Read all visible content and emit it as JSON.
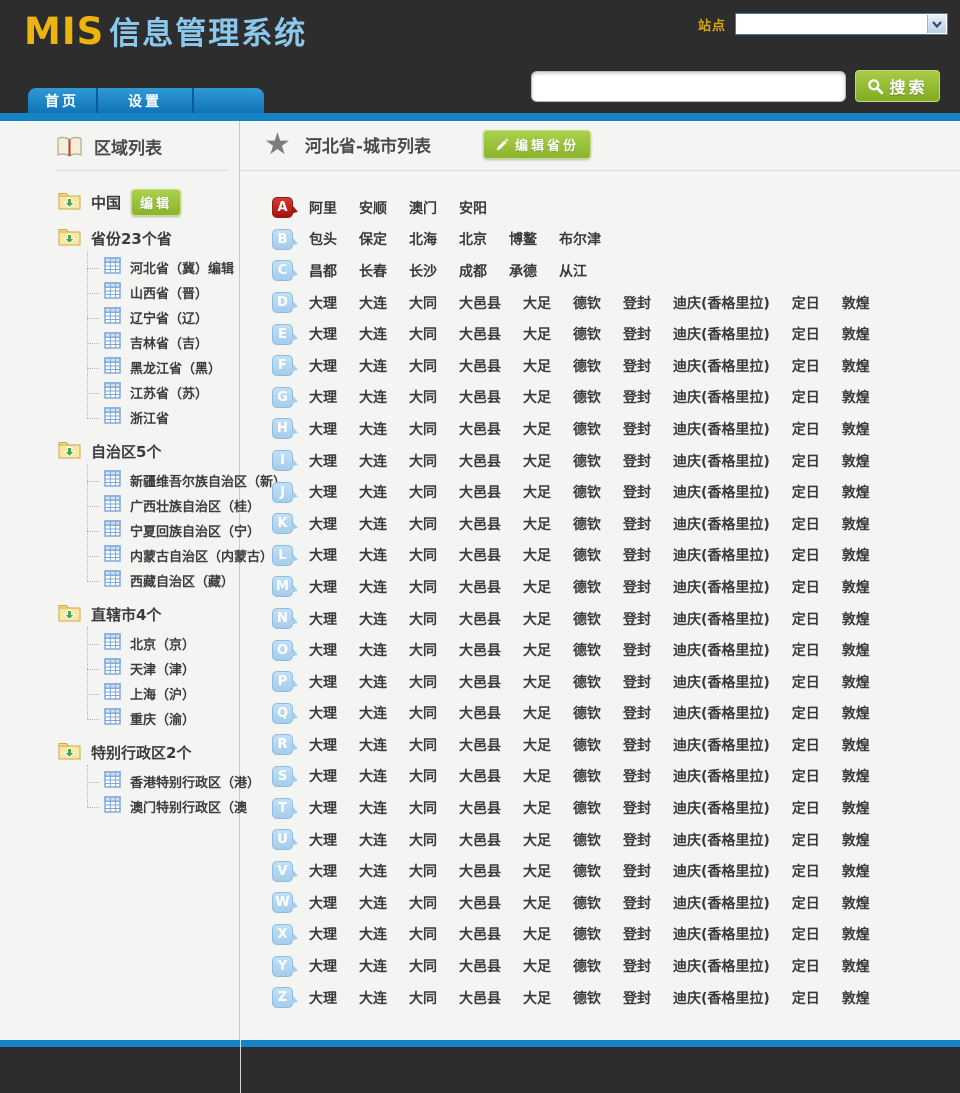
{
  "header": {
    "logo_primary": "MIS",
    "logo_secondary": "信息管理系统",
    "site_label": "站点",
    "site_select_value": "",
    "search_value": "",
    "search_button": "搜索"
  },
  "nav": {
    "tabs": [
      {
        "label": "首页"
      },
      {
        "label": "设置"
      }
    ]
  },
  "sidebar": {
    "title": "区域列表",
    "root": {
      "label": "中国",
      "edit_button": "编辑"
    },
    "groups": [
      {
        "label": "省份23个省",
        "children": [
          "河北省（冀）编辑",
          "山西省（晋）",
          "辽宁省（辽）",
          "吉林省（吉）",
          "黑龙江省（黑）",
          "江苏省（苏）",
          "浙江省"
        ]
      },
      {
        "label": "自治区5个",
        "children": [
          "新疆维吾尔族自治区（新）",
          "广西壮族自治区（桂）",
          "宁夏回族自治区（宁）",
          "内蒙古自治区（内蒙古）",
          "西藏自治区（藏）"
        ]
      },
      {
        "label": "直辖市4个",
        "children": [
          "北京（京）",
          "天津（津）",
          "上海（沪）",
          "重庆（渝）"
        ]
      },
      {
        "label": "特别行政区2个",
        "children": [
          "香港特别行政区（港）",
          "澳门特别行政区（澳"
        ]
      }
    ]
  },
  "main": {
    "title": "河北省-城市列表",
    "edit_button": "编辑省份",
    "letter_rows": [
      {
        "letter": "A",
        "style": "red",
        "cities": [
          "阿里",
          "安顺",
          "澳门",
          "安阳"
        ]
      },
      {
        "letter": "B",
        "style": "blue",
        "cities": [
          "包头",
          "保定",
          "北海",
          "北京",
          "博鳌",
          "布尔津"
        ]
      },
      {
        "letter": "C",
        "style": "blue",
        "cities": [
          "昌都",
          "长春",
          "长沙",
          "成都",
          "承德",
          "从江"
        ]
      },
      {
        "letter": "D",
        "style": "blue",
        "cities": [
          "大理",
          "大连",
          "大同",
          "大邑县",
          "大足",
          "德钦",
          "登封",
          "迪庆(香格里拉)",
          "定日",
          "敦煌"
        ]
      },
      {
        "letter": "E",
        "style": "blue",
        "cities": [
          "大理",
          "大连",
          "大同",
          "大邑县",
          "大足",
          "德钦",
          "登封",
          "迪庆(香格里拉)",
          "定日",
          "敦煌"
        ]
      },
      {
        "letter": "F",
        "style": "blue",
        "cities": [
          "大理",
          "大连",
          "大同",
          "大邑县",
          "大足",
          "德钦",
          "登封",
          "迪庆(香格里拉)",
          "定日",
          "敦煌"
        ]
      },
      {
        "letter": "G",
        "style": "blue",
        "cities": [
          "大理",
          "大连",
          "大同",
          "大邑县",
          "大足",
          "德钦",
          "登封",
          "迪庆(香格里拉)",
          "定日",
          "敦煌"
        ]
      },
      {
        "letter": "H",
        "style": "blue",
        "cities": [
          "大理",
          "大连",
          "大同",
          "大邑县",
          "大足",
          "德钦",
          "登封",
          "迪庆(香格里拉)",
          "定日",
          "敦煌"
        ]
      },
      {
        "letter": "I",
        "style": "blue",
        "cities": [
          "大理",
          "大连",
          "大同",
          "大邑县",
          "大足",
          "德钦",
          "登封",
          "迪庆(香格里拉)",
          "定日",
          "敦煌"
        ]
      },
      {
        "letter": "J",
        "style": "blue",
        "cities": [
          "大理",
          "大连",
          "大同",
          "大邑县",
          "大足",
          "德钦",
          "登封",
          "迪庆(香格里拉)",
          "定日",
          "敦煌"
        ]
      },
      {
        "letter": "K",
        "style": "blue",
        "cities": [
          "大理",
          "大连",
          "大同",
          "大邑县",
          "大足",
          "德钦",
          "登封",
          "迪庆(香格里拉)",
          "定日",
          "敦煌"
        ]
      },
      {
        "letter": "L",
        "style": "blue",
        "cities": [
          "大理",
          "大连",
          "大同",
          "大邑县",
          "大足",
          "德钦",
          "登封",
          "迪庆(香格里拉)",
          "定日",
          "敦煌"
        ]
      },
      {
        "letter": "M",
        "style": "blue",
        "cities": [
          "大理",
          "大连",
          "大同",
          "大邑县",
          "大足",
          "德钦",
          "登封",
          "迪庆(香格里拉)",
          "定日",
          "敦煌"
        ]
      },
      {
        "letter": "N",
        "style": "blue",
        "cities": [
          "大理",
          "大连",
          "大同",
          "大邑县",
          "大足",
          "德钦",
          "登封",
          "迪庆(香格里拉)",
          "定日",
          "敦煌"
        ]
      },
      {
        "letter": "O",
        "style": "blue",
        "cities": [
          "大理",
          "大连",
          "大同",
          "大邑县",
          "大足",
          "德钦",
          "登封",
          "迪庆(香格里拉)",
          "定日",
          "敦煌"
        ]
      },
      {
        "letter": "P",
        "style": "blue",
        "cities": [
          "大理",
          "大连",
          "大同",
          "大邑县",
          "大足",
          "德钦",
          "登封",
          "迪庆(香格里拉)",
          "定日",
          "敦煌"
        ]
      },
      {
        "letter": "Q",
        "style": "blue",
        "cities": [
          "大理",
          "大连",
          "大同",
          "大邑县",
          "大足",
          "德钦",
          "登封",
          "迪庆(香格里拉)",
          "定日",
          "敦煌"
        ]
      },
      {
        "letter": "R",
        "style": "blue",
        "cities": [
          "大理",
          "大连",
          "大同",
          "大邑县",
          "大足",
          "德钦",
          "登封",
          "迪庆(香格里拉)",
          "定日",
          "敦煌"
        ]
      },
      {
        "letter": "S",
        "style": "blue",
        "cities": [
          "大理",
          "大连",
          "大同",
          "大邑县",
          "大足",
          "德钦",
          "登封",
          "迪庆(香格里拉)",
          "定日",
          "敦煌"
        ]
      },
      {
        "letter": "T",
        "style": "blue",
        "cities": [
          "大理",
          "大连",
          "大同",
          "大邑县",
          "大足",
          "德钦",
          "登封",
          "迪庆(香格里拉)",
          "定日",
          "敦煌"
        ]
      },
      {
        "letter": "U",
        "style": "blue",
        "cities": [
          "大理",
          "大连",
          "大同",
          "大邑县",
          "大足",
          "德钦",
          "登封",
          "迪庆(香格里拉)",
          "定日",
          "敦煌"
        ]
      },
      {
        "letter": "V",
        "style": "blue",
        "cities": [
          "大理",
          "大连",
          "大同",
          "大邑县",
          "大足",
          "德钦",
          "登封",
          "迪庆(香格里拉)",
          "定日",
          "敦煌"
        ]
      },
      {
        "letter": "W",
        "style": "blue",
        "cities": [
          "大理",
          "大连",
          "大同",
          "大邑县",
          "大足",
          "德钦",
          "登封",
          "迪庆(香格里拉)",
          "定日",
          "敦煌"
        ]
      },
      {
        "letter": "X",
        "style": "blue",
        "cities": [
          "大理",
          "大连",
          "大同",
          "大邑县",
          "大足",
          "德钦",
          "登封",
          "迪庆(香格里拉)",
          "定日",
          "敦煌"
        ]
      },
      {
        "letter": "Y",
        "style": "blue",
        "cities": [
          "大理",
          "大连",
          "大同",
          "大邑县",
          "大足",
          "德钦",
          "登封",
          "迪庆(香格里拉)",
          "定日",
          "敦煌"
        ]
      },
      {
        "letter": "Z",
        "style": "blue",
        "cities": [
          "大理",
          "大连",
          "大同",
          "大邑县",
          "大足",
          "德钦",
          "登封",
          "迪庆(香格里拉)",
          "定日",
          "敦煌"
        ]
      }
    ]
  },
  "colors": {
    "header_bg": "#2d2d2d",
    "logo_gold": "#edb30e",
    "logo_blue": "#8cc8ec",
    "accent_blue": "#1583c6",
    "button_green": "#8bb32b",
    "badge_red": "#a3140f",
    "badge_blue": "#a5cdec",
    "page_bg": "#f4f4f2"
  },
  "icons": {
    "book": "book-icon",
    "folder": "folder-arrow-icon",
    "grid": "table-icon",
    "star": "star-icon",
    "pencil": "pencil-icon",
    "magnifier": "search-icon",
    "chevron": "chevron-down-icon"
  }
}
